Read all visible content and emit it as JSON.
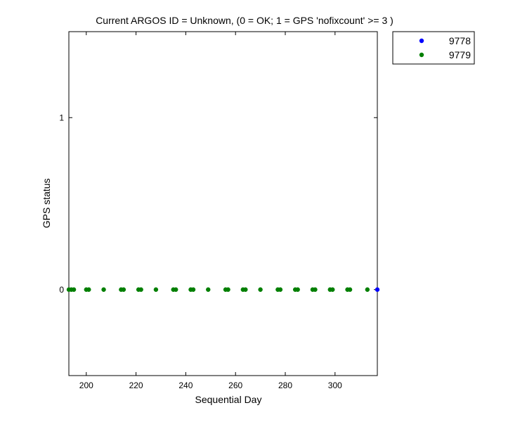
{
  "chart_data": {
    "type": "scatter",
    "title": "Current ARGOS ID = Unknown, (0 = OK; 1 = GPS 'nofixcount' >= 3 )",
    "xlabel": "Sequential Day",
    "ylabel": "GPS status",
    "xlim": [
      193,
      317
    ],
    "ylim": [
      -0.5,
      1.5
    ],
    "x_ticks": [
      200,
      220,
      240,
      260,
      280,
      300
    ],
    "y_ticks": [
      0,
      1
    ],
    "legend_position": "outside-top-right",
    "series": [
      {
        "name": "9778",
        "color": "#0000ff",
        "x": [
          317
        ],
        "y": [
          0
        ]
      },
      {
        "name": "9779",
        "color": "#007f00",
        "x": [
          193,
          194,
          195,
          200,
          201,
          207,
          214,
          215,
          221,
          222,
          228,
          235,
          236,
          242,
          243,
          249,
          256,
          257,
          263,
          264,
          270,
          277,
          278,
          284,
          285,
          291,
          292,
          298,
          299,
          305,
          306,
          313
        ],
        "y": [
          0,
          0,
          0,
          0,
          0,
          0,
          0,
          0,
          0,
          0,
          0,
          0,
          0,
          0,
          0,
          0,
          0,
          0,
          0,
          0,
          0,
          0,
          0,
          0,
          0,
          0,
          0,
          0,
          0,
          0,
          0,
          0
        ]
      }
    ]
  }
}
